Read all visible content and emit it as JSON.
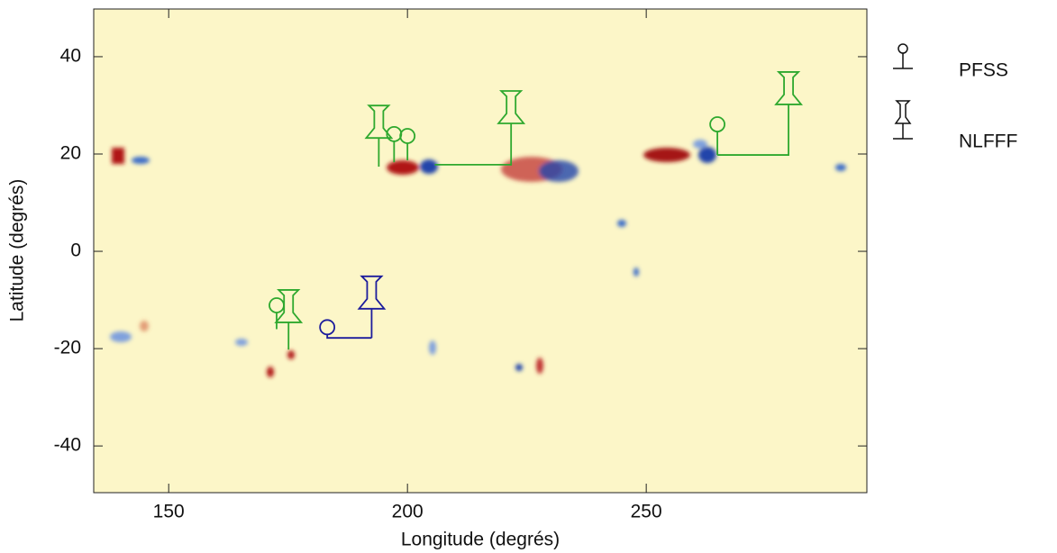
{
  "chart_data": {
    "type": "scatter",
    "x_label": "Longitude (degrés)",
    "y_label": "Latitude (degrés)",
    "xlim": [
      134.3,
      296.2
    ],
    "ylim": [
      -49.6,
      49.8
    ],
    "xticks": [
      150,
      200,
      250
    ],
    "yticks": [
      -40,
      -20,
      0,
      20,
      40
    ],
    "legend_position": "right",
    "series": [
      {
        "name": "PFSS",
        "marker": "circle",
        "x": [
          197.2,
          200,
          264.9,
          172.6,
          183.2
        ],
        "y": [
          24.1,
          23.7,
          26.1,
          -11.1,
          -15.6
        ],
        "anchor_x": [
          197.2,
          200,
          264.9,
          172.6,
          192.5
        ],
        "anchor_y": [
          18.3,
          18.7,
          19.8,
          -16,
          -17.8
        ],
        "colors": [
          "#2ea82e",
          "#2ea82e",
          "#2ea82e",
          "#2ea82e",
          "#1c1c9c"
        ]
      },
      {
        "name": "NLFFF",
        "marker": "pushpin",
        "x": [
          194,
          221.7,
          279.8,
          175.1,
          192.5
        ],
        "y": [
          25.7,
          28.7,
          32.6,
          -12.2,
          -9.4
        ],
        "anchor_x": [
          194,
          205.7,
          264.9,
          175.1,
          192.5
        ],
        "anchor_y": [
          17.4,
          17.8,
          19.8,
          -20.2,
          -17.8
        ],
        "colors": [
          "#2ea82e",
          "#2ea82e",
          "#2ea82e",
          "#2ea82e",
          "#1c1c9c"
        ]
      }
    ]
  }
}
